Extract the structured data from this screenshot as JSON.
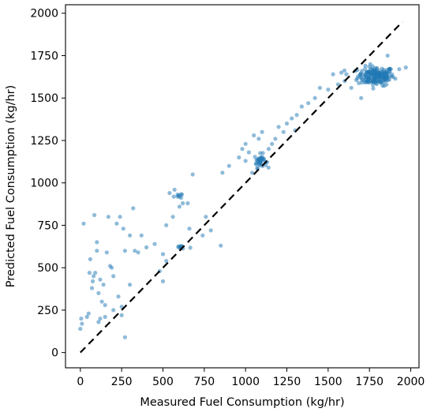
{
  "chart_data": {
    "type": "scatter",
    "title": "",
    "xlabel": "Measured Fuel Consumption (kg/hr)",
    "ylabel": "Predicted Fuel Consumption (kg/hr)",
    "xlim": [
      -90,
      2050
    ],
    "ylim": [
      -90,
      2050
    ],
    "xticks": [
      0,
      250,
      500,
      750,
      1000,
      1250,
      1500,
      1750,
      2000
    ],
    "yticks": [
      0,
      250,
      500,
      750,
      1000,
      1250,
      1500,
      1750,
      2000
    ],
    "xtick_labels": [
      "0",
      "250",
      "500",
      "750",
      "1000",
      "1250",
      "1500",
      "1750",
      "2000"
    ],
    "ytick_labels": [
      "0",
      "250",
      "500",
      "750",
      "1000",
      "1250",
      "1500",
      "1750",
      "2000"
    ],
    "grid": false,
    "point_color": "#1f77b4",
    "reference_line": {
      "style": "dashed",
      "color": "#000000",
      "x": [
        0,
        1950
      ],
      "y": [
        0,
        1950
      ]
    },
    "clusters": [
      {
        "center": [
          1790,
          1630
        ],
        "spread": [
          55,
          28
        ],
        "count": 180
      },
      {
        "center": [
          1090,
          1130
        ],
        "spread": [
          18,
          20
        ],
        "count": 35
      },
      {
        "center": [
          590,
          925
        ],
        "spread": [
          12,
          8
        ],
        "count": 8
      },
      {
        "center": [
          610,
          620
        ],
        "spread": [
          20,
          8
        ],
        "count": 10
      }
    ],
    "points": [
      [
        1970,
        1680
      ],
      [
        1930,
        1670
      ],
      [
        1860,
        1750
      ],
      [
        1700,
        1500
      ],
      [
        1640,
        1560
      ],
      [
        1610,
        1640
      ],
      [
        1600,
        1600
      ],
      [
        1560,
        1580
      ],
      [
        1580,
        1650
      ],
      [
        1530,
        1640
      ],
      [
        1500,
        1550
      ],
      [
        1450,
        1560
      ],
      [
        1420,
        1500
      ],
      [
        1380,
        1470
      ],
      [
        1340,
        1450
      ],
      [
        1310,
        1400
      ],
      [
        1300,
        1310
      ],
      [
        1280,
        1380
      ],
      [
        1250,
        1350
      ],
      [
        1230,
        1300
      ],
      [
        1200,
        1330
      ],
      [
        1180,
        1260
      ],
      [
        1160,
        1230
      ],
      [
        1140,
        1200
      ],
      [
        1100,
        1300
      ],
      [
        1080,
        1260
      ],
      [
        1050,
        1280
      ],
      [
        1020,
        1180
      ],
      [
        1000,
        1230
      ],
      [
        980,
        1200
      ],
      [
        960,
        1150
      ],
      [
        1000,
        1130
      ],
      [
        1040,
        1060
      ],
      [
        900,
        1100
      ],
      [
        860,
        1060
      ],
      [
        850,
        630
      ],
      [
        790,
        720
      ],
      [
        760,
        800
      ],
      [
        740,
        690
      ],
      [
        680,
        1050
      ],
      [
        660,
        730
      ],
      [
        650,
        880
      ],
      [
        620,
        880
      ],
      [
        600,
        860
      ],
      [
        570,
        960
      ],
      [
        540,
        940
      ],
      [
        560,
        800
      ],
      [
        520,
        750
      ],
      [
        500,
        580
      ],
      [
        520,
        540
      ],
      [
        480,
        480
      ],
      [
        500,
        420
      ],
      [
        450,
        640
      ],
      [
        400,
        620
      ],
      [
        370,
        690
      ],
      [
        350,
        590
      ],
      [
        330,
        600
      ],
      [
        320,
        850
      ],
      [
        300,
        690
      ],
      [
        270,
        600
      ],
      [
        260,
        730
      ],
      [
        250,
        270
      ],
      [
        250,
        220
      ],
      [
        240,
        800
      ],
      [
        220,
        760
      ],
      [
        200,
        250
      ],
      [
        190,
        500
      ],
      [
        180,
        510
      ],
      [
        170,
        800
      ],
      [
        160,
        590
      ],
      [
        150,
        210
      ],
      [
        140,
        400
      ],
      [
        130,
        300
      ],
      [
        120,
        430
      ],
      [
        110,
        350
      ],
      [
        100,
        650
      ],
      [
        100,
        600
      ],
      [
        90,
        470
      ],
      [
        85,
        810
      ],
      [
        80,
        450
      ],
      [
        75,
        420
      ],
      [
        70,
        380
      ],
      [
        60,
        550
      ],
      [
        55,
        470
      ],
      [
        50,
        230
      ],
      [
        40,
        210
      ],
      [
        20,
        760
      ],
      [
        10,
        170
      ],
      [
        5,
        200
      ],
      [
        0,
        140
      ],
      [
        270,
        90
      ],
      [
        200,
        450
      ],
      [
        230,
        330
      ],
      [
        150,
        280
      ],
      [
        120,
        200
      ],
      [
        110,
        180
      ],
      [
        300,
        400
      ]
    ]
  }
}
